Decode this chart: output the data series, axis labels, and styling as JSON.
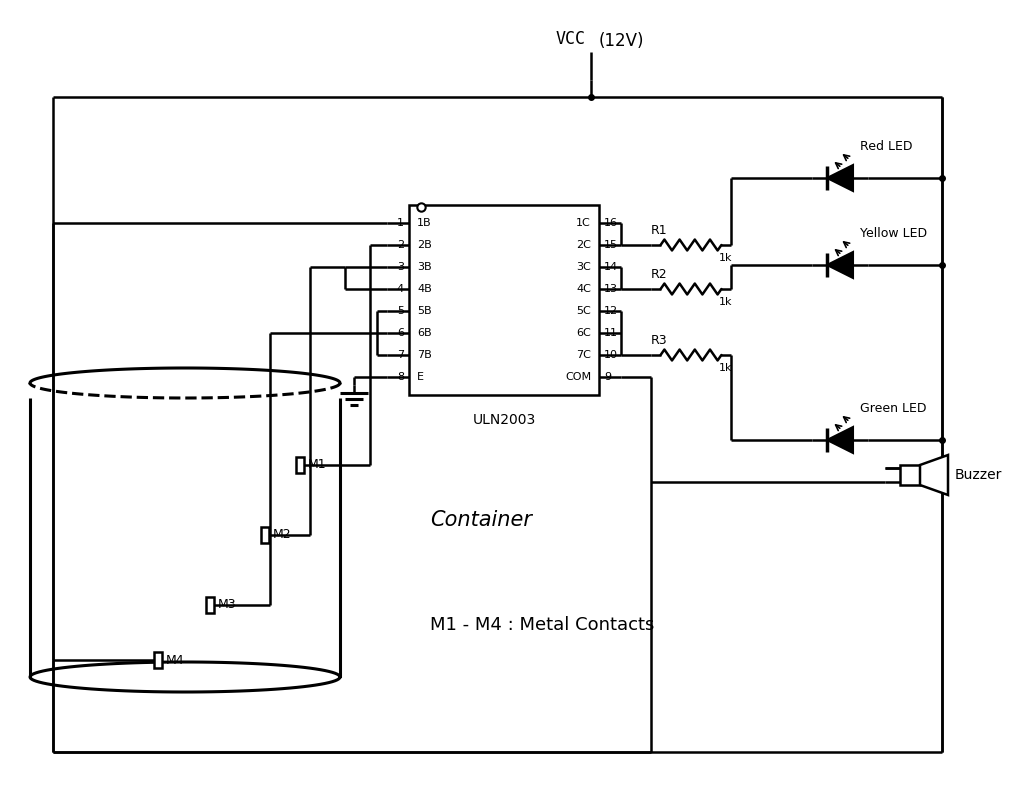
{
  "bg_color": "#ffffff",
  "line_color": "#000000",
  "vcc_label": "VCC",
  "vcc_label2": "(12V)",
  "ic_label": "ULN2003",
  "left_pins_B": [
    "1B",
    "2B",
    "3B",
    "4B",
    "5B",
    "6B",
    "7B",
    "E"
  ],
  "right_pins_C": [
    "1C",
    "2C",
    "3C",
    "4C",
    "5C",
    "6C",
    "7C",
    "COM"
  ],
  "left_pin_nums": [
    "1",
    "2",
    "3",
    "4",
    "5",
    "6",
    "7",
    "8"
  ],
  "right_pin_nums": [
    "16",
    "15",
    "14",
    "13",
    "12",
    "11",
    "10",
    "9"
  ],
  "leds": [
    "Red LED",
    "Yellow LED",
    "Green LED"
  ],
  "resistors": [
    "R1",
    "R2",
    "R3"
  ],
  "resistor_values": [
    "1k",
    "1k",
    "1k"
  ],
  "container_label": "Container",
  "metal_contacts_label": "M1 - M4 : Metal Contacts",
  "metal_contacts": [
    "M1",
    "M2",
    "M3",
    "M4"
  ],
  "buzzer_label": "Buzzer"
}
